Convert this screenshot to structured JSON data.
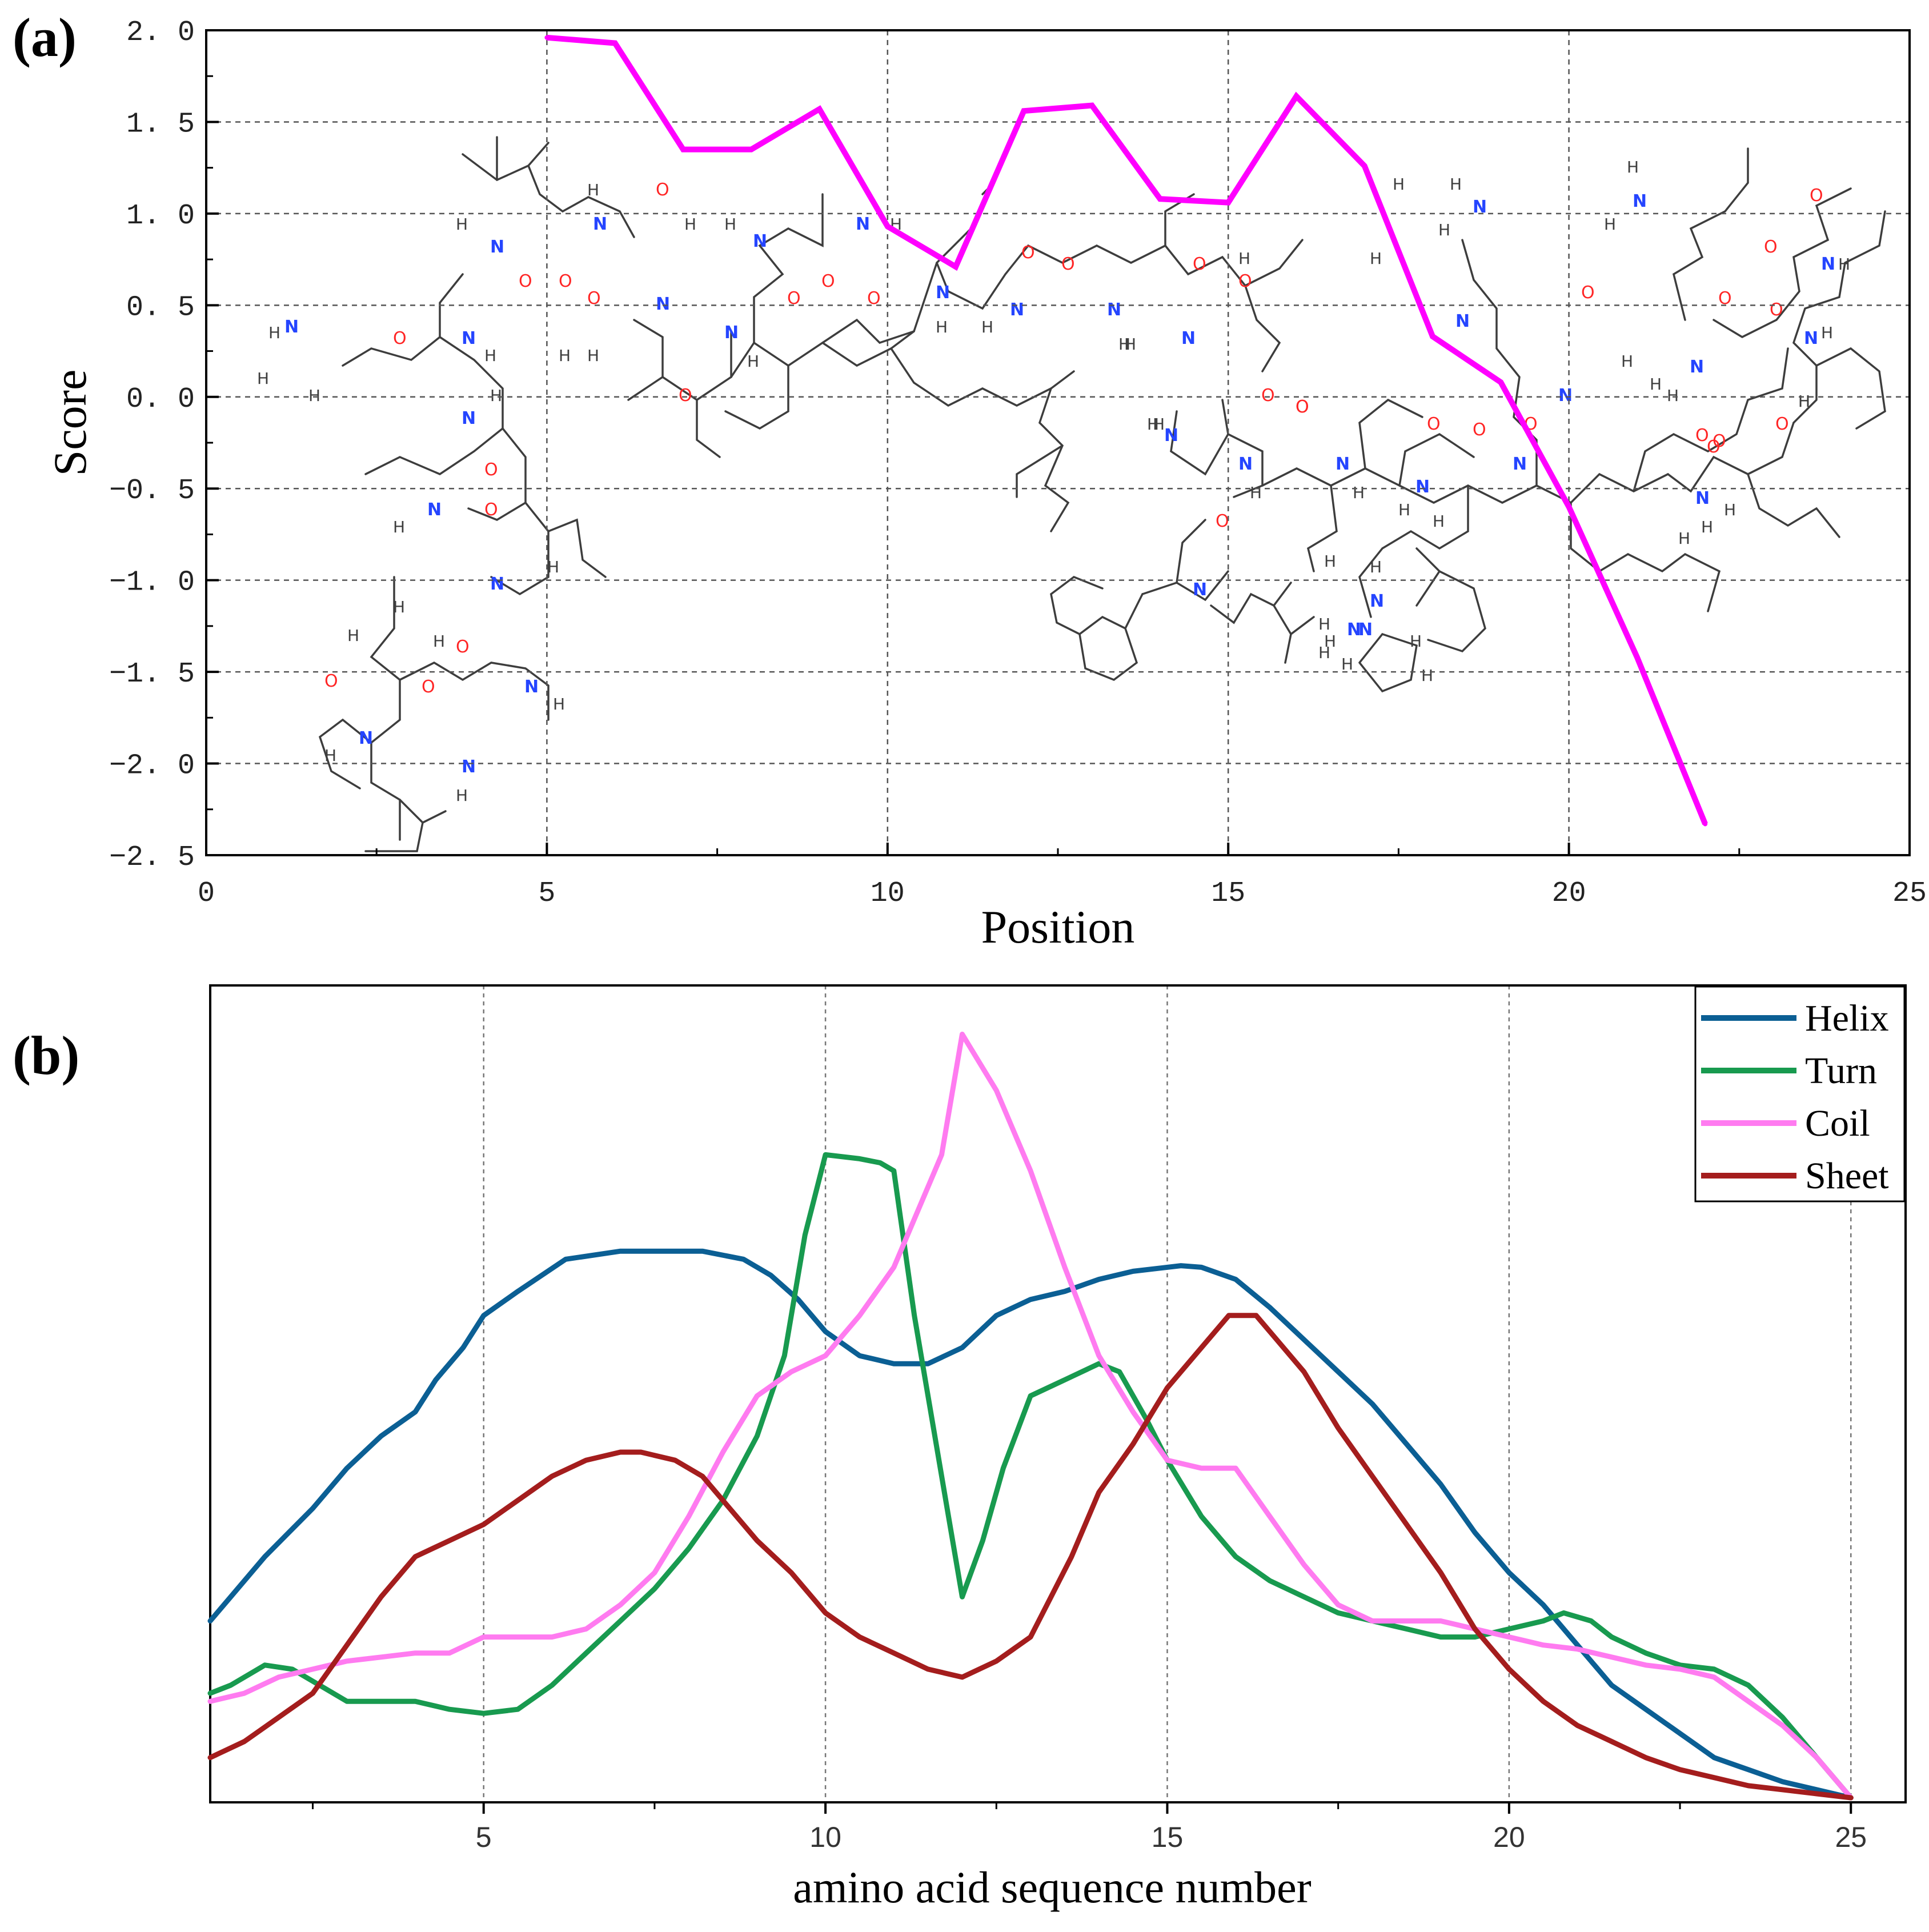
{
  "chart_data": [
    {
      "type": "line",
      "panel_label": "(a)",
      "xlabel": "Position",
      "ylabel": "Score",
      "xlim": [
        0,
        25
      ],
      "ylim": [
        -2.5,
        2.0
      ],
      "x_ticks": [
        0,
        5,
        10,
        15,
        20,
        25
      ],
      "y_ticks": [
        2.0,
        1.5,
        1.0,
        0.5,
        0.0,
        -0.5,
        -1.0,
        -1.5,
        -2.0,
        -2.5
      ],
      "y_tick_labels": [
        "2. 0",
        "1. 5",
        "1. 0",
        "0. 5",
        "0. 0",
        "−0. 5",
        "−1. 0",
        "−1. 5",
        "−2. 0",
        "−2. 5"
      ],
      "grid": true,
      "series": [
        {
          "name": "Score",
          "color": "#ff00ff",
          "x": [
            5,
            6,
            7,
            8,
            9,
            10,
            11,
            12,
            13,
            14,
            15,
            16,
            17,
            18,
            19,
            20,
            21,
            22
          ],
          "values": [
            1.96,
            1.93,
            1.35,
            1.35,
            1.57,
            0.93,
            0.71,
            1.56,
            1.59,
            1.08,
            1.06,
            1.64,
            1.26,
            0.33,
            0.08,
            -0.6,
            -1.42,
            -2.33
          ]
        }
      ],
      "background_illustration": "peptide-structure"
    },
    {
      "type": "line",
      "panel_label": "(b)",
      "xlabel": "amino acid sequence number",
      "ylabel": "",
      "xlim": [
        1,
        25.8
      ],
      "ylim": [
        0,
        1
      ],
      "x_ticks": [
        5,
        10,
        15,
        20,
        25
      ],
      "y_ticks": [],
      "grid": true,
      "legend_position": "top-right",
      "series": [
        {
          "name": "Helix",
          "color": "#0b5f94",
          "x": [
            1,
            1.3,
            1.8,
            2.5,
            3,
            3.5,
            4,
            4.3,
            4.7,
            5,
            5.5,
            6.2,
            7,
            7.5,
            8.2,
            8.8,
            9.2,
            9.6,
            10,
            10.5,
            11,
            11.5,
            12,
            12.5,
            13,
            13.5,
            14,
            14.5,
            15.2,
            15.5,
            16,
            16.5,
            17,
            17.5,
            18,
            18.5,
            19,
            19.5,
            20,
            20.5,
            21,
            21.5,
            22,
            22.5,
            23,
            23.5,
            24,
            24.5,
            25
          ],
          "values": [
            0.22,
            0.25,
            0.3,
            0.36,
            0.41,
            0.45,
            0.48,
            0.52,
            0.56,
            0.6,
            0.63,
            0.67,
            0.68,
            0.68,
            0.68,
            0.67,
            0.65,
            0.62,
            0.58,
            0.55,
            0.54,
            0.54,
            0.56,
            0.6,
            0.62,
            0.63,
            0.645,
            0.655,
            0.662,
            0.66,
            0.645,
            0.61,
            0.57,
            0.53,
            0.49,
            0.44,
            0.39,
            0.33,
            0.28,
            0.24,
            0.19,
            0.14,
            0.11,
            0.08,
            0.05,
            0.035,
            0.02,
            0.01,
            0.0
          ]
        },
        {
          "name": "Turn",
          "color": "#189a4f",
          "x": [
            1,
            1.3,
            1.8,
            2.2,
            2.6,
            3,
            3.5,
            4,
            4.5,
            5,
            5.5,
            6,
            6.5,
            7,
            7.5,
            8,
            8.5,
            9,
            9.4,
            9.7,
            10,
            10.5,
            10.8,
            11,
            11.3,
            11.8,
            12,
            12.3,
            12.6,
            13,
            13.5,
            14,
            14.3,
            14.7,
            15,
            15.5,
            16,
            16.5,
            17,
            17.5,
            18,
            18.5,
            19,
            19.5,
            20,
            20.5,
            20.8,
            21.2,
            21.5,
            22,
            22.5,
            23,
            23.5,
            24,
            24.5,
            25
          ],
          "values": [
            0.13,
            0.14,
            0.165,
            0.16,
            0.14,
            0.12,
            0.12,
            0.12,
            0.11,
            0.105,
            0.11,
            0.14,
            0.18,
            0.22,
            0.26,
            0.31,
            0.37,
            0.45,
            0.55,
            0.7,
            0.8,
            0.795,
            0.79,
            0.78,
            0.6,
            0.35,
            0.25,
            0.32,
            0.41,
            0.5,
            0.52,
            0.54,
            0.53,
            0.47,
            0.42,
            0.35,
            0.3,
            0.27,
            0.25,
            0.23,
            0.22,
            0.21,
            0.2,
            0.2,
            0.21,
            0.22,
            0.23,
            0.22,
            0.2,
            0.18,
            0.165,
            0.16,
            0.14,
            0.1,
            0.05,
            0.0
          ]
        },
        {
          "name": "Coil",
          "color": "#ff7bf0",
          "x": [
            1,
            1.5,
            2,
            2.5,
            3,
            3.5,
            4,
            4.5,
            5,
            5.5,
            6,
            6.5,
            7,
            7.5,
            8,
            8.5,
            9,
            9.5,
            10,
            10.5,
            11,
            11.3,
            11.7,
            12,
            12.5,
            13,
            13.5,
            14,
            14.5,
            15,
            15.5,
            16,
            16.5,
            17,
            17.5,
            18,
            18.5,
            19,
            19.5,
            20,
            20.5,
            21,
            21.5,
            22,
            22.5,
            23,
            23.5,
            24,
            24.5,
            25
          ],
          "values": [
            0.12,
            0.13,
            0.15,
            0.16,
            0.17,
            0.175,
            0.18,
            0.18,
            0.2,
            0.2,
            0.2,
            0.21,
            0.24,
            0.28,
            0.35,
            0.43,
            0.5,
            0.53,
            0.55,
            0.6,
            0.66,
            0.72,
            0.8,
            0.95,
            0.88,
            0.78,
            0.66,
            0.55,
            0.48,
            0.42,
            0.41,
            0.41,
            0.35,
            0.29,
            0.24,
            0.22,
            0.22,
            0.22,
            0.21,
            0.2,
            0.19,
            0.185,
            0.175,
            0.165,
            0.16,
            0.15,
            0.12,
            0.09,
            0.05,
            0.0
          ]
        },
        {
          "name": "Sheet",
          "color": "#a41d1d",
          "x": [
            1,
            1.5,
            2,
            2.5,
            3,
            3.5,
            4,
            4.5,
            5,
            5.5,
            6,
            6.5,
            7,
            7.3,
            7.8,
            8.2,
            8.6,
            9,
            9.5,
            10,
            10.5,
            11,
            11.5,
            12,
            12.5,
            13,
            13.3,
            13.6,
            14,
            14.5,
            15,
            15.5,
            15.9,
            16.3,
            16.6,
            17,
            17.5,
            18,
            18.5,
            19,
            19.5,
            20,
            20.5,
            21,
            21.5,
            22,
            22.5,
            23,
            23.5,
            24,
            24.5,
            25
          ],
          "values": [
            0.05,
            0.07,
            0.1,
            0.13,
            0.19,
            0.25,
            0.3,
            0.32,
            0.34,
            0.37,
            0.4,
            0.42,
            0.43,
            0.43,
            0.42,
            0.4,
            0.36,
            0.32,
            0.28,
            0.23,
            0.2,
            0.18,
            0.16,
            0.15,
            0.17,
            0.2,
            0.25,
            0.3,
            0.38,
            0.44,
            0.51,
            0.56,
            0.6,
            0.6,
            0.57,
            0.53,
            0.46,
            0.4,
            0.34,
            0.28,
            0.21,
            0.16,
            0.12,
            0.09,
            0.07,
            0.05,
            0.035,
            0.025,
            0.015,
            0.01,
            0.005,
            0.0
          ]
        }
      ]
    }
  ]
}
